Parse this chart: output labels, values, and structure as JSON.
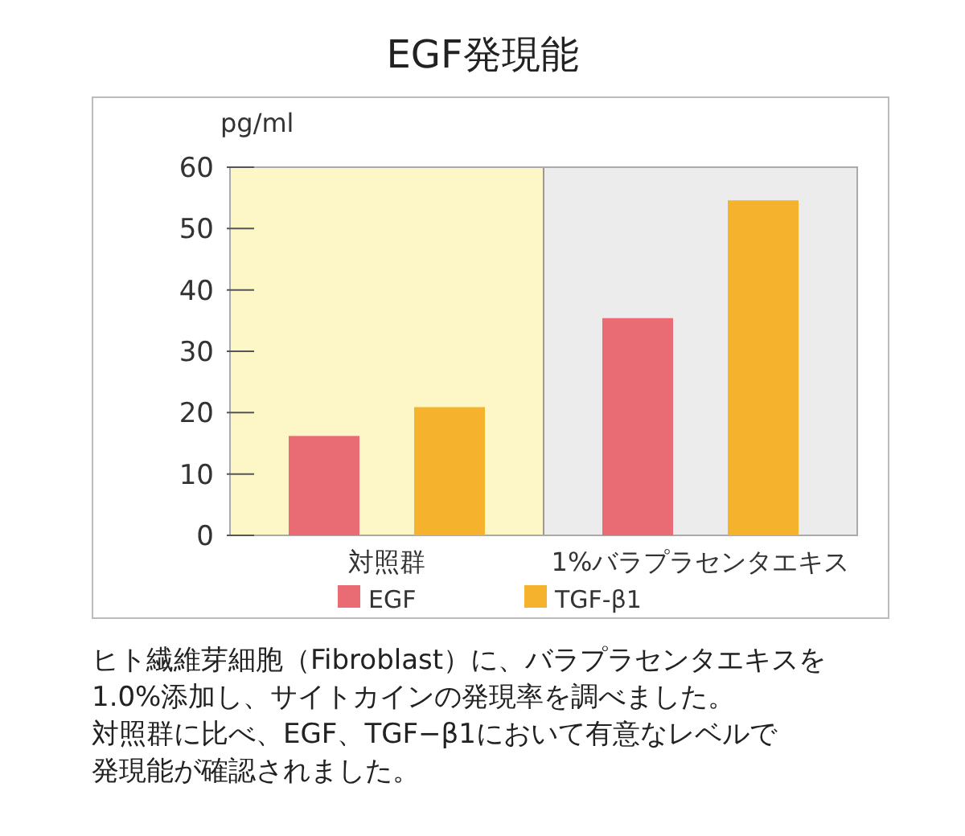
{
  "chart_data": {
    "type": "bar",
    "title": "EGF発現能",
    "ylabel": "pg/ml",
    "categories": [
      "対照群",
      "1%バラプラセンタエキス"
    ],
    "series": [
      {
        "name": "EGF",
        "color": "#e96b73",
        "values": [
          16.2,
          35.4
        ]
      },
      {
        "name": "TGF-β1",
        "color": "#f5b32d",
        "values": [
          20.9,
          54.6
        ]
      }
    ],
    "ylim": [
      0,
      60
    ],
    "yticks": [
      0,
      10,
      20,
      30,
      40,
      50,
      60
    ],
    "legend": "bottom left",
    "bands": [
      {
        "axis": "x",
        "from": "対照群",
        "to": "対照群",
        "color": "#fdf7c8"
      },
      {
        "axis": "x",
        "from": "1%バラプラセンタエキス",
        "to": "1%バラプラセンタエキス",
        "color": "#ececec"
      }
    ],
    "annotations": [
      "ヒト繊維芽細胞（Fibroblast）に、バラプラセンタエキスを",
      "1.0%添加し、サイトカインの発現率を調べました。",
      "対照群に比べ、EGF、TGF−β1において有意なレベルで",
      "発現能が確認されました。"
    ]
  }
}
